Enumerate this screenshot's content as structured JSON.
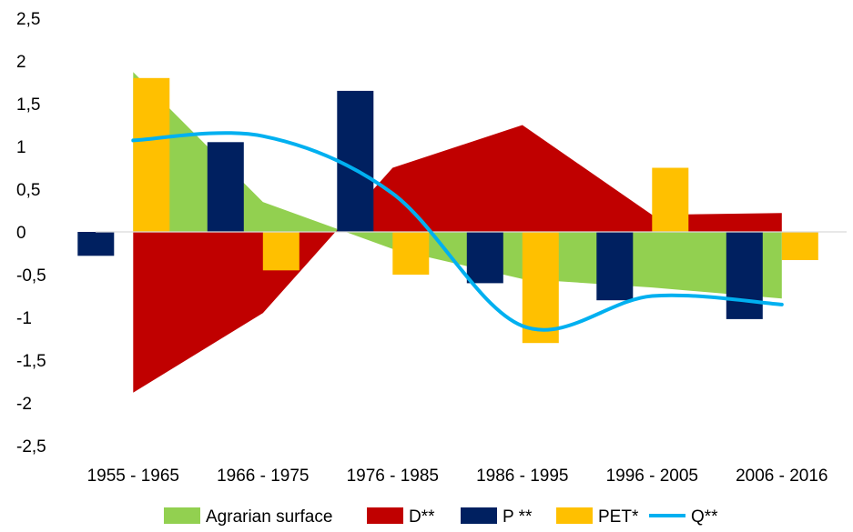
{
  "chart_data": {
    "type": "bar",
    "title": "",
    "xlabel": "",
    "ylabel": "",
    "categories": [
      "1955 - 1965",
      "1966 - 1975",
      "1976 - 1985",
      "1986 - 1995",
      "1996 - 2005",
      "2006 - 2016"
    ],
    "ylim": [
      -2.5,
      2.5
    ],
    "yticks": [
      "2,5",
      "2",
      "1,5",
      "1",
      "0,5",
      "0",
      "-0,5",
      "-1",
      "-1,5",
      "-2",
      "-2,5"
    ],
    "ytick_values": [
      2.5,
      2,
      1.5,
      1,
      0.5,
      0,
      -0.5,
      -1,
      -1.5,
      -2,
      -2.5
    ],
    "grid": false,
    "legend_position": "bottom",
    "series": [
      {
        "name": "Agrarian surface",
        "kind": "area",
        "color": "#92D050",
        "values": [
          1.87,
          0.35,
          -0.2,
          -0.55,
          -0.65,
          -0.78
        ]
      },
      {
        "name": "D**",
        "kind": "area",
        "color": "#C00000",
        "values": [
          -1.88,
          -0.95,
          0.75,
          1.25,
          0.2,
          0.22
        ]
      },
      {
        "name": "P **",
        "kind": "bar",
        "color": "#002060",
        "values": [
          -0.28,
          1.05,
          1.65,
          -0.6,
          -0.8,
          -1.02
        ]
      },
      {
        "name": "PET*",
        "kind": "bar",
        "color": "#FFC000",
        "values": [
          1.8,
          -0.45,
          -0.5,
          -1.3,
          0.75,
          -0.33
        ]
      },
      {
        "name": "Q**",
        "kind": "line",
        "color": "#00B0F0",
        "values": [
          1.07,
          1.12,
          0.45,
          -1.1,
          -0.75,
          -0.85
        ]
      }
    ]
  }
}
